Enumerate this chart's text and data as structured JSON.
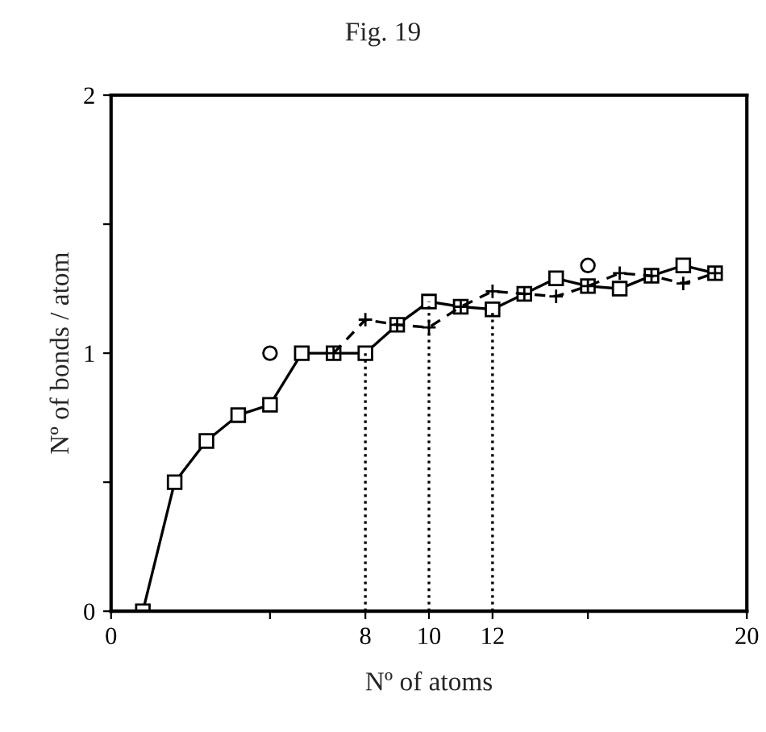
{
  "chart_data": {
    "type": "line",
    "title": "Fig. 19",
    "xlabel": "Nº of atoms",
    "ylabel": "Nº of bonds / atom",
    "xlim": [
      0,
      20
    ],
    "ylim": [
      0,
      2
    ],
    "xticks": [
      0,
      {
        "value": 5,
        "label": null
      },
      8,
      10,
      12,
      {
        "value": 15,
        "label": null
      },
      20
    ],
    "yticks": [
      0,
      {
        "value": 0.5,
        "label": null
      },
      1,
      {
        "value": 1.5,
        "label": null
      },
      2
    ],
    "grid": false,
    "legend": false,
    "series": [
      {
        "color": "#000000",
        "marker": "square",
        "line_style": "solid",
        "x": [
          1,
          2,
          3,
          4,
          5,
          6,
          7,
          8,
          9,
          10,
          11,
          12,
          13,
          14,
          15,
          16,
          17,
          18,
          19
        ],
        "values": [
          0,
          0.5,
          0.66,
          0.76,
          0.8,
          1.0,
          1.0,
          1.0,
          1.11,
          1.2,
          1.18,
          1.17,
          1.23,
          1.29,
          1.26,
          1.25,
          1.3,
          1.34,
          1.31
        ]
      },
      {
        "color": "#000000",
        "marker": "cross",
        "line_style": "dashed",
        "x": [
          7,
          8,
          9,
          10,
          11,
          12,
          13,
          14,
          15,
          16,
          17,
          18,
          19
        ],
        "values": [
          1.0,
          1.13,
          1.11,
          1.1,
          1.18,
          1.24,
          1.23,
          1.22,
          1.26,
          1.31,
          1.3,
          1.27,
          1.31
        ]
      },
      {
        "type": "scatter",
        "color": "#000000",
        "marker": "circle",
        "x": [
          5,
          15
        ],
        "values": [
          1.0,
          1.34
        ]
      },
      {
        "color": "#000000",
        "marker": "none",
        "line_style": "dotted",
        "x": [
          8,
          8
        ],
        "values": [
          0,
          1.0
        ]
      },
      {
        "color": "#000000",
        "marker": "none",
        "line_style": "dotted",
        "x": [
          10,
          10
        ],
        "values": [
          0,
          1.2
        ]
      },
      {
        "color": "#000000",
        "marker": "none",
        "line_style": "dotted",
        "x": [
          12,
          12
        ],
        "values": [
          0,
          1.17
        ]
      }
    ]
  }
}
